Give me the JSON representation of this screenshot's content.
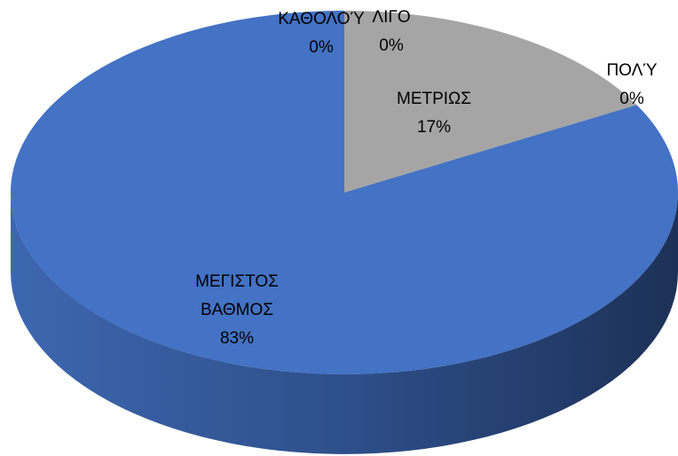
{
  "chart_data": {
    "type": "pie",
    "categories": [
      "ΚΑΘΟΛΟΎ",
      "ΛΙΓΟ",
      "ΜΕΤΡΙΩΣ",
      "ΠΟΛΎ",
      "ΜΕΓΙΣΤΟΣ ΒΑΘΜΟΣ"
    ],
    "values": [
      0,
      0,
      17,
      0,
      83
    ],
    "value_labels": [
      "0%",
      "0%",
      "17%",
      "0%",
      "83%"
    ],
    "colors": [
      "#4472c4",
      "#ed7d31",
      "#a5a5a5",
      "#ffc000",
      "#4472c4"
    ]
  }
}
